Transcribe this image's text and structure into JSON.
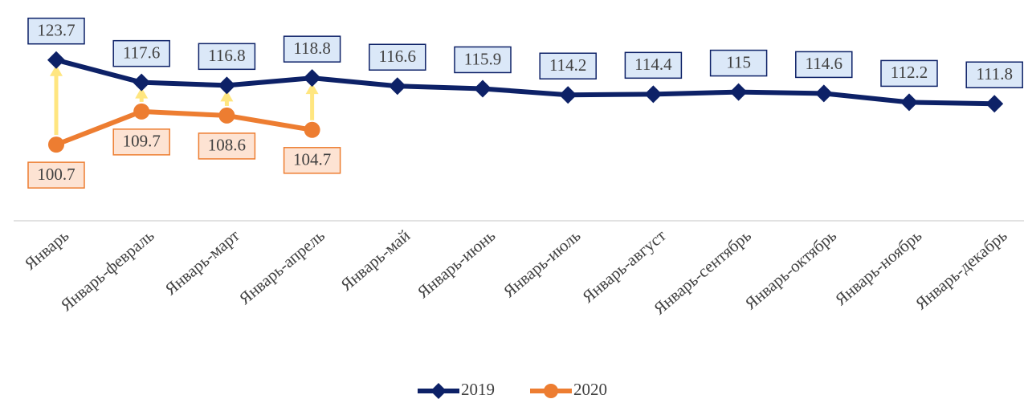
{
  "chart_data": {
    "type": "line",
    "categories": [
      "Январь",
      "Январь-февраль",
      "Январь-март",
      "Январь-апрель",
      "Январь-май",
      "Январь-июнь",
      "Январь-июль",
      "Январь-август",
      "Январь-сентябрь",
      "Январь-октябрь",
      "Январь-ноябрь",
      "Январь-декабрь"
    ],
    "series": [
      {
        "name": "2019",
        "color": "#0d2167",
        "values": [
          123.7,
          117.6,
          116.8,
          118.8,
          116.6,
          115.9,
          114.2,
          114.4,
          115,
          114.6,
          112.2,
          111.8
        ]
      },
      {
        "name": "2020",
        "color": "#ed7d31",
        "values": [
          100.7,
          109.7,
          108.6,
          104.7,
          null,
          null,
          null,
          null,
          null,
          null,
          null,
          null
        ]
      }
    ],
    "ylim": [
      80,
      140
    ],
    "legend": "bottom"
  }
}
